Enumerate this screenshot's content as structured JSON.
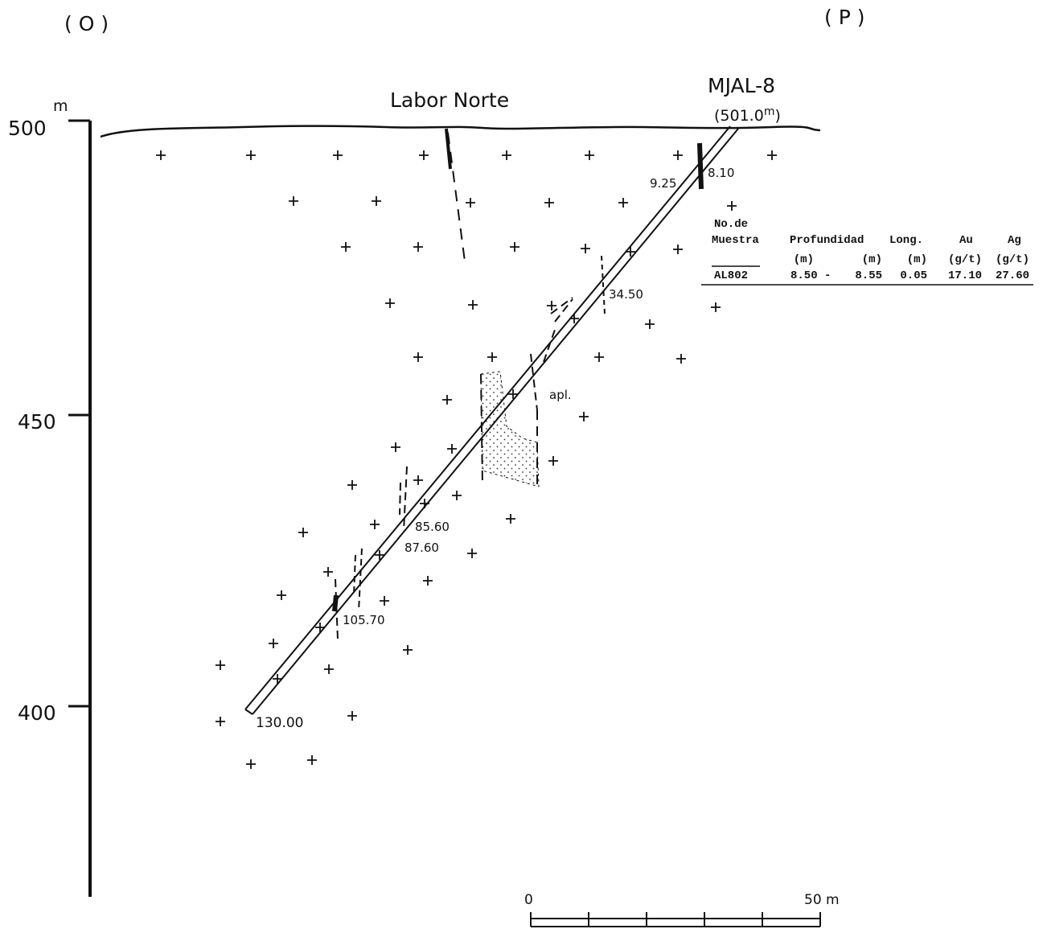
{
  "header": {
    "left": "( O )",
    "right": "( P )"
  },
  "hole": {
    "name": "MJAL-8",
    "collar_elevation": "(501.0",
    "collar_unit": "m",
    "collar_paren": ")"
  },
  "site": "Labor Norte",
  "axis": {
    "labels": [
      "500",
      "450",
      "400"
    ],
    "unit": "m"
  },
  "depths": [
    "8.10",
    "9.25",
    "34.50",
    "85.60",
    "87.60",
    "105.70",
    "130.00"
  ],
  "rock": "apl.",
  "table": {
    "header_top": "No.de",
    "headers": [
      "Muestra",
      "Profundidad",
      "Long.",
      "Au",
      "Ag"
    ],
    "units": [
      "(m)",
      "(m)",
      "(m)",
      "(g/t)",
      "(g/t)"
    ],
    "rows": [
      [
        "AL802",
        "8.50 -",
        "8.55",
        "0.05",
        "17.10",
        "27.60"
      ]
    ]
  },
  "scale": {
    "start": "0",
    "end": "50 m"
  }
}
